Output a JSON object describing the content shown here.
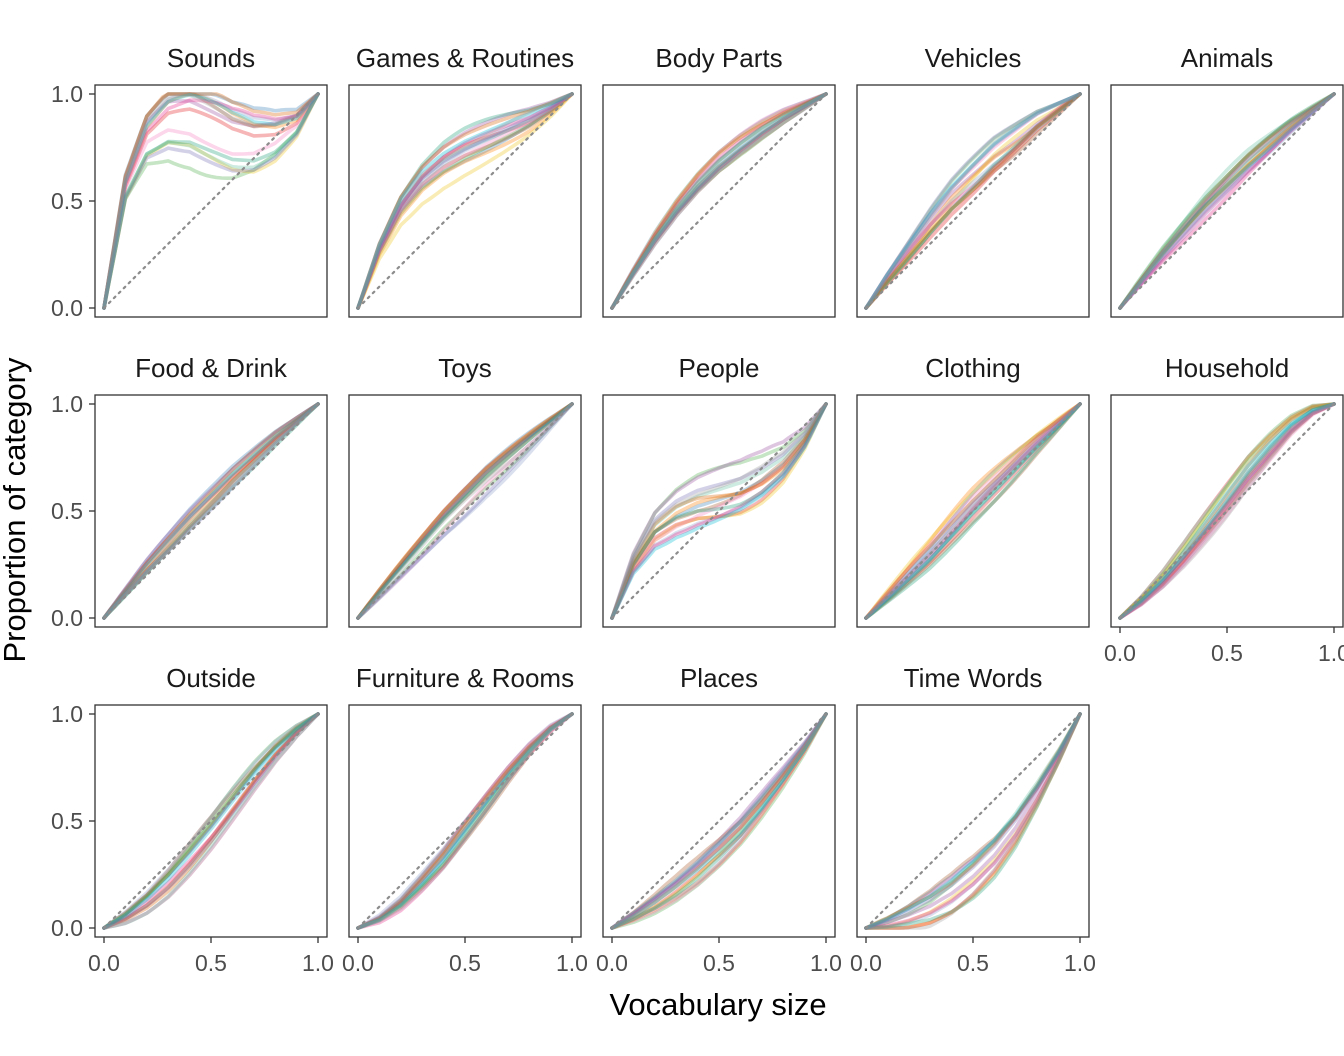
{
  "chart_data": {
    "type": "line",
    "layout": "faceted-grid",
    "xlabel": "Vocabulary size",
    "ylabel": "Proportion of category",
    "xlim": [
      0,
      1
    ],
    "ylim": [
      0,
      1
    ],
    "x_ticks": [
      "0.0",
      "0.5",
      "1.0"
    ],
    "y_ticks": [
      "0.0",
      "0.5",
      "1.0"
    ],
    "grid": false,
    "reference_line": "identity (y = x), dotted grey",
    "series_colors": [
      "#e41a1c",
      "#377eb8",
      "#4daf4a",
      "#984ea3",
      "#ff7f00",
      "#f0c419",
      "#a65628",
      "#f781bf",
      "#66c2a5",
      "#8da0cb",
      "#e7298a",
      "#1b9e77",
      "#d95f02",
      "#7570b3",
      "#00bcd4",
      "#9e9e9e"
    ],
    "facets": [
      {
        "name": "Sounds",
        "x": [
          0,
          0.1,
          0.2,
          0.3,
          0.4,
          0.5,
          0.6,
          0.7,
          0.8,
          0.9,
          1.0
        ],
        "y_mean": [
          0,
          0.55,
          0.77,
          0.84,
          0.84,
          0.8,
          0.76,
          0.75,
          0.78,
          0.85,
          1.0
        ],
        "y_spread": 0.16
      },
      {
        "name": "Games & Routines",
        "x": [
          0,
          0.1,
          0.2,
          0.3,
          0.4,
          0.5,
          0.6,
          0.7,
          0.8,
          0.9,
          1.0
        ],
        "y_mean": [
          0,
          0.27,
          0.46,
          0.58,
          0.66,
          0.72,
          0.77,
          0.82,
          0.87,
          0.93,
          1.0
        ],
        "y_spread": 0.08
      },
      {
        "name": "Body Parts",
        "x": [
          0,
          0.1,
          0.2,
          0.3,
          0.4,
          0.5,
          0.6,
          0.7,
          0.8,
          0.9,
          1.0
        ],
        "y_mean": [
          0,
          0.17,
          0.33,
          0.47,
          0.59,
          0.69,
          0.77,
          0.84,
          0.9,
          0.95,
          1.0
        ],
        "y_spread": 0.04
      },
      {
        "name": "Vehicles",
        "x": [
          0,
          0.1,
          0.2,
          0.3,
          0.4,
          0.5,
          0.6,
          0.7,
          0.8,
          0.9,
          1.0
        ],
        "y_mean": [
          0,
          0.14,
          0.27,
          0.4,
          0.52,
          0.62,
          0.72,
          0.8,
          0.88,
          0.94,
          1.0
        ],
        "y_spread": 0.08
      },
      {
        "name": "Animals",
        "x": [
          0,
          0.1,
          0.2,
          0.3,
          0.4,
          0.5,
          0.6,
          0.7,
          0.8,
          0.9,
          1.0
        ],
        "y_mean": [
          0,
          0.12,
          0.24,
          0.35,
          0.46,
          0.56,
          0.66,
          0.75,
          0.84,
          0.92,
          1.0
        ],
        "y_spread": 0.05
      },
      {
        "name": "Food & Drink",
        "x": [
          0,
          0.1,
          0.2,
          0.3,
          0.4,
          0.5,
          0.6,
          0.7,
          0.8,
          0.9,
          1.0
        ],
        "y_mean": [
          0,
          0.12,
          0.24,
          0.35,
          0.46,
          0.56,
          0.66,
          0.75,
          0.84,
          0.92,
          1.0
        ],
        "y_spread": 0.04
      },
      {
        "name": "Toys",
        "x": [
          0,
          0.1,
          0.2,
          0.3,
          0.4,
          0.5,
          0.6,
          0.7,
          0.8,
          0.9,
          1.0
        ],
        "y_mean": [
          0,
          0.11,
          0.22,
          0.33,
          0.44,
          0.54,
          0.64,
          0.73,
          0.82,
          0.91,
          1.0
        ],
        "y_spread": 0.05
      },
      {
        "name": "People",
        "x": [
          0,
          0.1,
          0.2,
          0.3,
          0.4,
          0.5,
          0.6,
          0.7,
          0.8,
          0.9,
          1.0
        ],
        "y_mean": [
          0,
          0.26,
          0.42,
          0.5,
          0.55,
          0.58,
          0.61,
          0.66,
          0.73,
          0.84,
          1.0
        ],
        "y_spread": 0.1
      },
      {
        "name": "Clothing",
        "x": [
          0,
          0.1,
          0.2,
          0.3,
          0.4,
          0.5,
          0.6,
          0.7,
          0.8,
          0.9,
          1.0
        ],
        "y_mean": [
          0,
          0.1,
          0.2,
          0.3,
          0.41,
          0.52,
          0.62,
          0.72,
          0.82,
          0.91,
          1.0
        ],
        "y_spread": 0.06
      },
      {
        "name": "Household",
        "x": [
          0,
          0.1,
          0.2,
          0.3,
          0.4,
          0.5,
          0.6,
          0.7,
          0.8,
          0.9,
          1.0
        ],
        "y_mean": [
          0,
          0.08,
          0.18,
          0.3,
          0.43,
          0.56,
          0.69,
          0.8,
          0.9,
          0.97,
          1.0
        ],
        "y_spread": 0.05
      },
      {
        "name": "Outside",
        "x": [
          0,
          0.1,
          0.2,
          0.3,
          0.4,
          0.5,
          0.6,
          0.7,
          0.8,
          0.9,
          1.0
        ],
        "y_mean": [
          0,
          0.05,
          0.12,
          0.21,
          0.32,
          0.44,
          0.57,
          0.7,
          0.82,
          0.92,
          1.0
        ],
        "y_spread": 0.06
      },
      {
        "name": "Furniture & Rooms",
        "x": [
          0,
          0.1,
          0.2,
          0.3,
          0.4,
          0.5,
          0.6,
          0.7,
          0.8,
          0.9,
          1.0
        ],
        "y_mean": [
          0,
          0.04,
          0.11,
          0.21,
          0.32,
          0.45,
          0.58,
          0.71,
          0.83,
          0.93,
          1.0
        ],
        "y_spread": 0.04
      },
      {
        "name": "Places",
        "x": [
          0,
          0.1,
          0.2,
          0.3,
          0.4,
          0.5,
          0.6,
          0.7,
          0.8,
          0.9,
          1.0
        ],
        "y_mean": [
          0,
          0.05,
          0.11,
          0.18,
          0.26,
          0.35,
          0.45,
          0.57,
          0.7,
          0.84,
          1.0
        ],
        "y_spread": 0.05
      },
      {
        "name": "Time Words",
        "x": [
          0,
          0.1,
          0.2,
          0.3,
          0.4,
          0.5,
          0.6,
          0.7,
          0.8,
          0.9,
          1.0
        ],
        "y_mean": [
          0,
          0.02,
          0.05,
          0.09,
          0.15,
          0.23,
          0.33,
          0.46,
          0.62,
          0.8,
          1.0
        ],
        "y_spread": 0.07
      }
    ]
  }
}
